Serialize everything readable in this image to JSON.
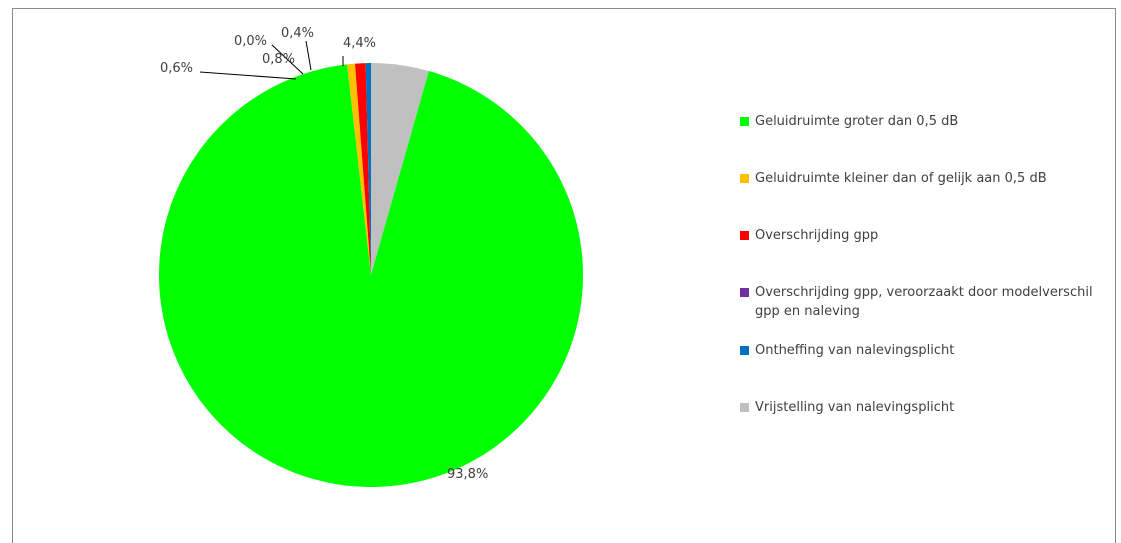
{
  "chart_data": {
    "type": "pie",
    "title": "",
    "legend_position": "right",
    "start_angle_deg": 0,
    "direction": "clockwise",
    "slices": [
      {
        "name": "Vrijstelling van nalevingsplicht",
        "value": 4.4,
        "label": "4,4%",
        "color": "#c0c0c0"
      },
      {
        "name": "Geluidruimte groter dan 0,5 dB",
        "value": 93.8,
        "label": "93,8%",
        "color": "#00ff00"
      },
      {
        "name": "Geluidruimte kleiner dan of gelijk aan 0,5 dB",
        "value": 0.6,
        "label": "0,6%",
        "color": "#ffc000"
      },
      {
        "name": "Overschrijding gpp",
        "value": 0.8,
        "label": "0,8%",
        "color": "#ff0000"
      },
      {
        "name": "Overschrijding gpp, veroorzaakt door modelverschil gpp en naleving",
        "value": 0.0,
        "label": "0,0%",
        "color": "#7030a0"
      },
      {
        "name": "Ontheffing van nalevingsplicht",
        "value": 0.4,
        "label": "0,4%",
        "color": "#0070c0"
      }
    ],
    "legend": [
      {
        "text": "Geluidruimte groter dan 0,5 dB",
        "color": "#00ff00"
      },
      {
        "text": "Geluidruimte kleiner dan of gelijk aan 0,5 dB",
        "color": "#ffc000"
      },
      {
        "text": "Overschrijding gpp",
        "color": "#ff0000"
      },
      {
        "text": "Overschrijding gpp, veroorzaakt door modelverschil gpp en naleving",
        "color": "#7030a0"
      },
      {
        "text": "Ontheffing van nalevingsplicht",
        "color": "#0070c0"
      },
      {
        "text": "Vrijstelling van nalevingsplicht",
        "color": "#c0c0c0"
      }
    ]
  }
}
